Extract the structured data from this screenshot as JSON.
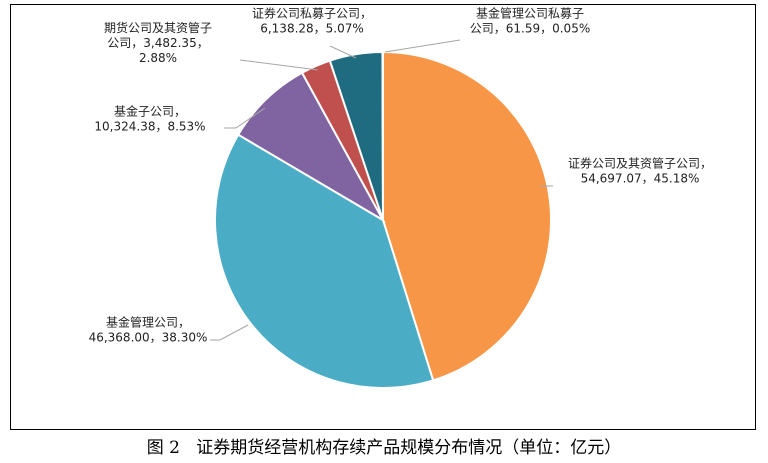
{
  "caption": "图 2   证券期货经营机构存续产品规模分布情况（单位：亿元）",
  "chart_data": {
    "type": "pie",
    "unit": "亿元",
    "slices": [
      {
        "category": "证券公司及其资管子公司",
        "value": 54697.07,
        "percent": 45.18,
        "color": "#F79646",
        "label_lines": [
          "证券公司及其资管子公司，",
          "54,697.07，45.18%"
        ]
      },
      {
        "category": "基金管理公司",
        "value": 46368.0,
        "percent": 38.3,
        "color": "#4BACC6",
        "label_lines": [
          "基金管理公司，",
          "46,368.00，38.30%"
        ]
      },
      {
        "category": "基金子公司",
        "value": 10324.38,
        "percent": 8.53,
        "color": "#8064A2",
        "label_lines": [
          "基金子公司，",
          "10,324.38，8.53%"
        ]
      },
      {
        "category": "期货公司及其资管子公司",
        "value": 3482.35,
        "percent": 2.88,
        "color": "#C0504D",
        "label_lines": [
          "期货公司及其资管子",
          "公司，3,482.35，",
          "2.88%"
        ]
      },
      {
        "category": "证券公司私募子公司",
        "value": 6138.28,
        "percent": 5.07,
        "color": "#1F6B80",
        "label_lines": [
          "证券公司私募子公司，",
          "6,138.28，5.07%"
        ]
      },
      {
        "category": "基金管理公司私募子公司",
        "value": 61.59,
        "percent": 0.05,
        "color": "#4F81BD",
        "label_lines": [
          "基金管理公司私募子",
          "公司，61.59，0.05%"
        ]
      }
    ]
  }
}
